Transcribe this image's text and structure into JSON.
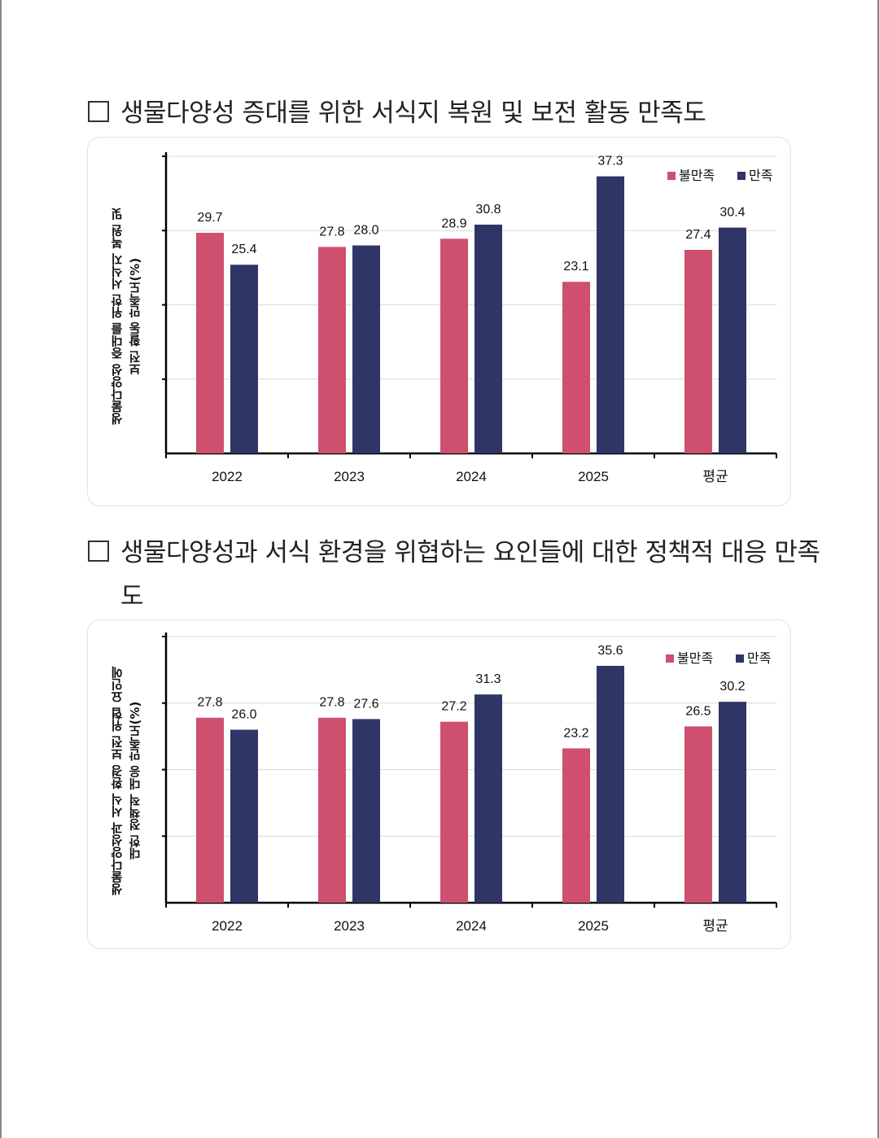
{
  "sections": [
    {
      "title": "생물다양성 증대를 위한 서식지 복원 및 보전 활동 만족도"
    },
    {
      "title": "생물다양성과 서식 환경을 위협하는 요인들에 대한 정책적 대응 만족도"
    }
  ],
  "chart_data": [
    {
      "type": "bar",
      "categories": [
        "2022",
        "2023",
        "2024",
        "2025",
        "평균"
      ],
      "series": [
        {
          "name": "불만족",
          "values": [
            29.7,
            27.8,
            28.9,
            23.1,
            27.4
          ],
          "color": "#cf4f6e",
          "labels": [
            "29.7",
            "27.8",
            "28.9",
            "23.1",
            "27.4"
          ]
        },
        {
          "name": "만족",
          "values": [
            25.4,
            28.0,
            30.8,
            37.3,
            30.4
          ],
          "color": "#2f3566",
          "labels": [
            "25.4",
            "28.0",
            "30.8",
            "37.3",
            "30.4"
          ]
        }
      ],
      "ylabel_line1": "생물다양성 증대를 위한 서식지 복원 및",
      "ylabel_line2": "보전 활동 만족도(%)",
      "ylim": [
        0,
        40
      ],
      "legend": "top-right",
      "grid": true
    },
    {
      "type": "bar",
      "categories": [
        "2022",
        "2023",
        "2024",
        "2025",
        "평균"
      ],
      "series": [
        {
          "name": "불만족",
          "values": [
            27.8,
            27.8,
            27.2,
            23.2,
            26.5
          ],
          "color": "#cf4f6e",
          "labels": [
            "27.8",
            "27.8",
            "27.2",
            "23.2",
            "26.5"
          ]
        },
        {
          "name": "만족",
          "values": [
            26.0,
            27.6,
            31.3,
            35.6,
            30.2
          ],
          "color": "#2f3566",
          "labels": [
            "26.0",
            "27.6",
            "31.3",
            "35.6",
            "30.2"
          ]
        }
      ],
      "ylabel_line1": "생물다양성과 서식 환경 보전 위협 요인에",
      "ylabel_line2": "대한 정책적 대응 만족도(%)",
      "ylim": [
        0,
        40
      ],
      "legend": "top-right",
      "grid": true
    }
  ]
}
